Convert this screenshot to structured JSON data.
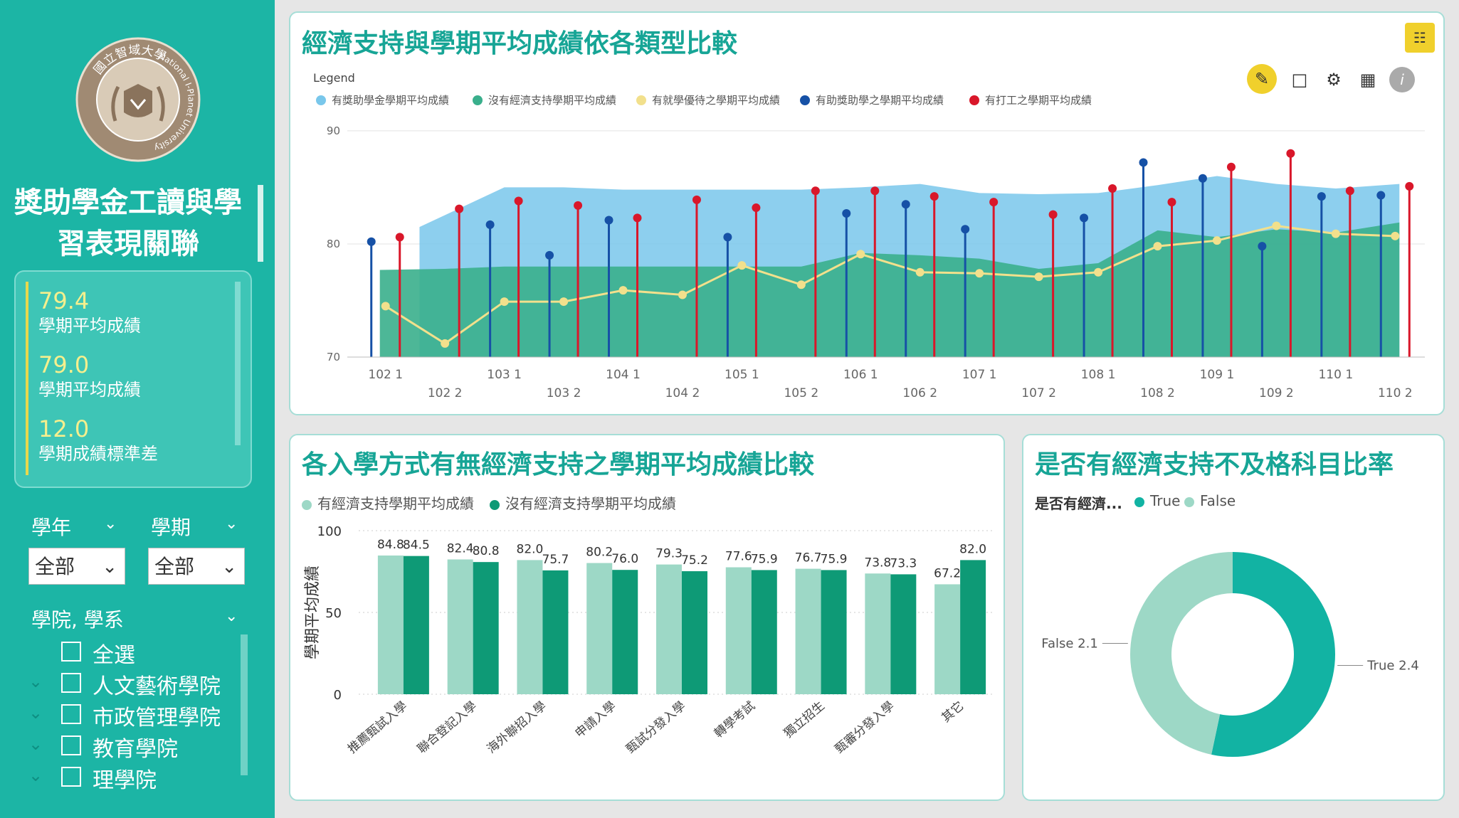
{
  "logo": {
    "arc_text_top": "國立智域大學",
    "arc_text_side": "National I-Planet University"
  },
  "app_title_line1": "獎助學金工讀與學",
  "app_title_line2": "習表現關聯",
  "kpis": [
    {
      "value": "79.4",
      "label": "學期平均成績"
    },
    {
      "value": "79.0",
      "label": "學期平均成績"
    },
    {
      "value": "12.0",
      "label": "學期成績標準差"
    }
  ],
  "slicers": {
    "year": {
      "label": "學年",
      "value": "全部"
    },
    "term": {
      "label": "學期",
      "value": "全部"
    },
    "college": {
      "label": "學院, 學系",
      "items": [
        "全選",
        "人文藝術學院",
        "市政管理學院",
        "教育學院",
        "理學院"
      ]
    }
  },
  "colors": {
    "teal": "#1cb5a5",
    "light_blue": "#79c7eb",
    "green": "#3aaf8c",
    "yellow": "#f2e08c",
    "navy": "#1651a6",
    "red": "#d9172a",
    "bar_light": "#9dd8c6",
    "bar_dark": "#0e9a76",
    "donut_true": "#12b3a3",
    "donut_false": "#9dd8c6"
  },
  "top_chart": {
    "title": "經濟支持與學期平均成績依各類型比較",
    "legend_title": "Legend",
    "legend": [
      "有獎助學金學期平均成績",
      "沒有經濟支持學期平均成績",
      "有就學優待之學期平均成績",
      "有助獎助學之學期平均成績",
      "有打工之學期平均成績"
    ],
    "tool_icons": [
      "pencil-icon",
      "comment-icon",
      "gear-icon",
      "table-icon",
      "info-icon",
      "focus-mode-icon"
    ]
  },
  "chart_data": [
    {
      "type": "area",
      "title": "經濟支持與學期平均成績依各類型比較",
      "x_top_row": [
        "102 1",
        "103 1",
        "104 1",
        "105 1",
        "106 1",
        "107 1",
        "108 1",
        "109 1",
        "110 1"
      ],
      "x_bottom_row": [
        "102 2",
        "103 2",
        "104 2",
        "105 2",
        "106 2",
        "107 2",
        "108 2",
        "109 2",
        "110 2"
      ],
      "x": [
        "102 1",
        "102 2",
        "103 1",
        "103 2",
        "104 1",
        "104 2",
        "105 1",
        "105 2",
        "106 1",
        "106 2",
        "107 1",
        "107 2",
        "108 1",
        "108 2",
        "109 1",
        "109 2",
        "110 1",
        "110 2"
      ],
      "yticks": [
        70,
        80,
        90
      ],
      "ylim": [
        70,
        91
      ],
      "series": [
        {
          "name": "有獎助學金學期平均成績",
          "type": "area",
          "values": [
            null,
            81.5,
            85.0,
            85.0,
            84.8,
            84.8,
            84.8,
            84.8,
            85.0,
            85.3,
            84.5,
            84.4,
            84.5,
            85.2,
            86.0,
            85.3,
            84.9,
            85.3
          ]
        },
        {
          "name": "沒有經濟支持學期平均成績",
          "type": "area",
          "values": [
            77.7,
            77.8,
            78.0,
            78.0,
            78.0,
            78.0,
            78.0,
            78.0,
            79.2,
            79.0,
            78.7,
            77.8,
            78.3,
            81.2,
            80.6,
            81.3,
            81.0,
            81.9
          ]
        },
        {
          "name": "有就學優待之學期平均成績",
          "type": "line",
          "values": [
            74.5,
            71.2,
            74.9,
            74.9,
            75.9,
            75.5,
            78.1,
            76.4,
            79.1,
            77.5,
            77.4,
            77.1,
            77.5,
            79.8,
            80.3,
            81.6,
            80.9,
            80.7
          ]
        },
        {
          "name": "有助獎助學之學期平均成績",
          "type": "lollipop",
          "values": [
            80.2,
            null,
            81.7,
            79.0,
            82.1,
            null,
            80.6,
            null,
            82.7,
            83.5,
            81.3,
            null,
            82.3,
            87.2,
            85.8,
            79.8,
            84.2,
            84.3
          ]
        },
        {
          "name": "有打工之學期平均成績",
          "type": "lollipop",
          "values": [
            80.6,
            83.1,
            83.8,
            83.4,
            82.3,
            83.9,
            83.2,
            84.7,
            84.7,
            84.2,
            83.7,
            82.6,
            84.9,
            83.7,
            86.8,
            88.0,
            84.7,
            85.1
          ]
        }
      ]
    },
    {
      "type": "bar",
      "title": "各入學方式有無經濟支持之學期平均成績比較",
      "ylabel": "學期平均成績",
      "yticks": [
        0,
        50,
        100
      ],
      "ylim": [
        0,
        100
      ],
      "categories": [
        "推薦甄試入學",
        "聯合登記入學",
        "海外聯招入學",
        "申請入學",
        "甄試分發入學",
        "轉學考試",
        "獨立招生",
        "甄審分發入學",
        "其它"
      ],
      "series": [
        {
          "name": "有經濟支持學期平均成績",
          "values": [
            84.8,
            82.4,
            82.0,
            80.2,
            79.3,
            77.6,
            76.7,
            73.8,
            67.2
          ]
        },
        {
          "name": "沒有經濟支持學期平均成績",
          "values": [
            84.5,
            80.8,
            75.7,
            76.0,
            75.2,
            75.9,
            75.9,
            73.3,
            82.0
          ]
        }
      ]
    },
    {
      "type": "pie",
      "title": "是否有經濟支持不及格科目比率",
      "legend_title": "是否有經濟...",
      "slices": [
        {
          "name": "True",
          "value": 2.4
        },
        {
          "name": "False",
          "value": 2.1
        }
      ]
    }
  ]
}
